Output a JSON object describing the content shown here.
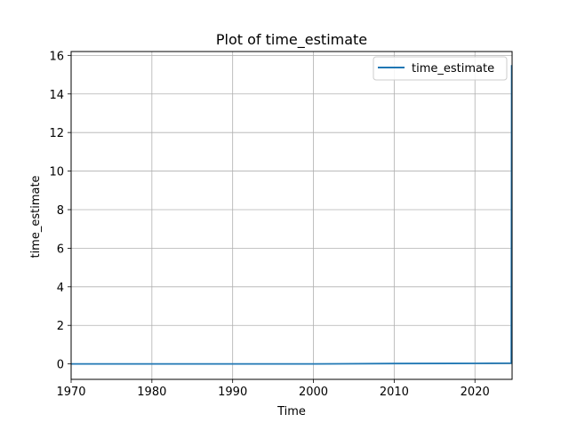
{
  "chart_data": {
    "type": "line",
    "title": "Plot of time_estimate",
    "xlabel": "Time",
    "ylabel": "time_estimate",
    "xlim": [
      1970,
      2024.6
    ],
    "ylim": [
      -0.8,
      16.2
    ],
    "x_ticks": [
      1970,
      1980,
      1990,
      2000,
      2010,
      2020
    ],
    "x_tick_labels": [
      "1970",
      "1980",
      "1990",
      "2000",
      "2010",
      "2020"
    ],
    "y_ticks": [
      0,
      2,
      4,
      6,
      8,
      10,
      12,
      14,
      16
    ],
    "y_tick_labels": [
      "0",
      "2",
      "4",
      "6",
      "8",
      "10",
      "12",
      "14",
      "16"
    ],
    "grid": true,
    "legend": {
      "position": "top-right",
      "entries": [
        "time_estimate"
      ]
    },
    "series": [
      {
        "name": "time_estimate",
        "color": "#1f77b4",
        "x": [
          1970,
          1980,
          1990,
          2000,
          2010,
          2020,
          2024.5,
          2024.55
        ],
        "values": [
          0.0,
          0.0,
          0.0,
          0.0,
          0.02,
          0.03,
          0.04,
          15.5
        ]
      }
    ]
  }
}
